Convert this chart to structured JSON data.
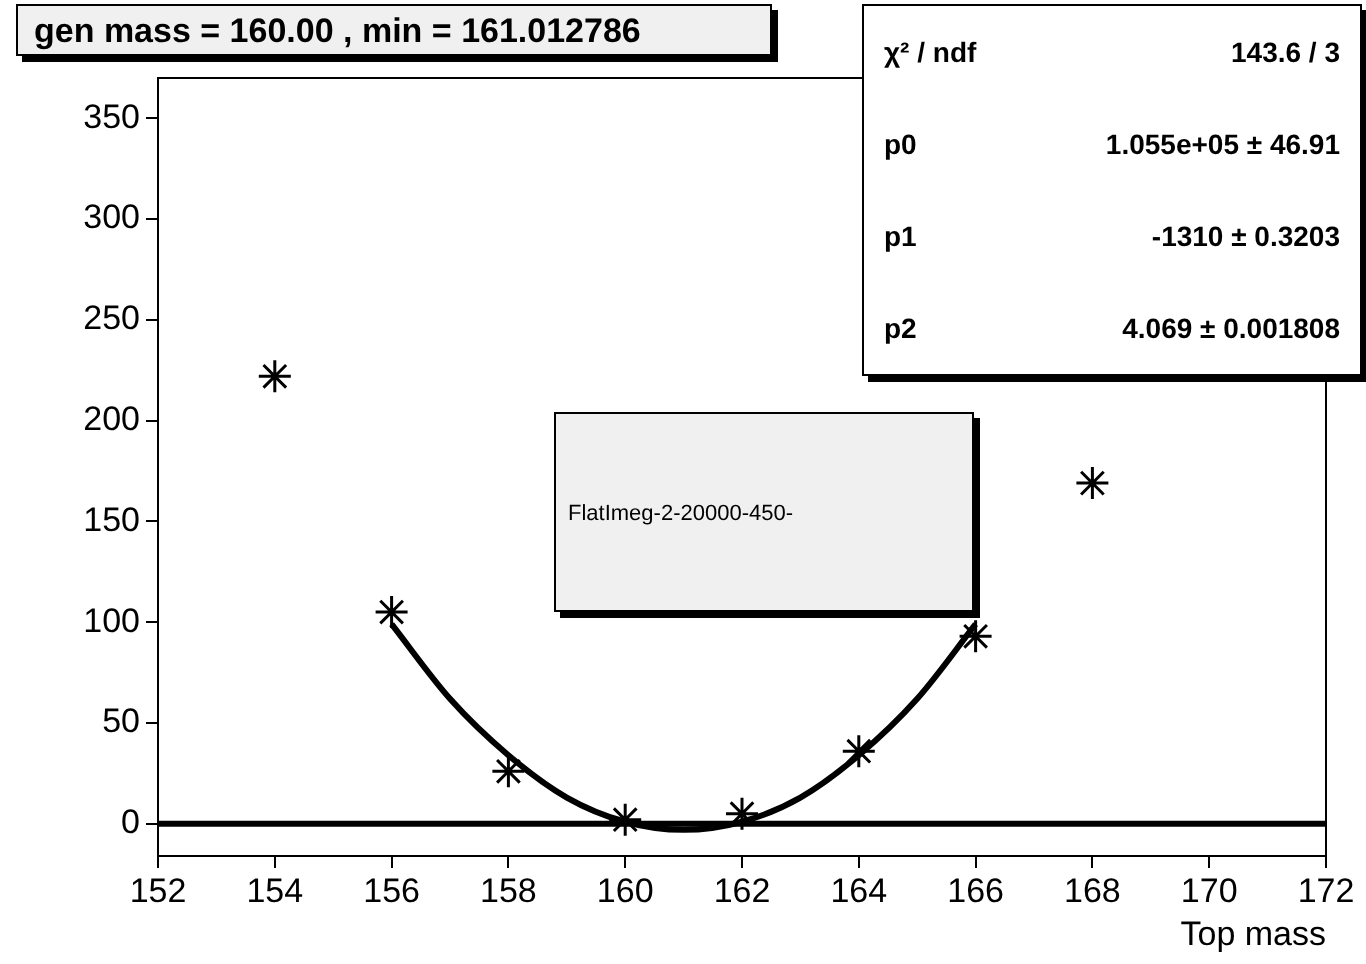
{
  "chart_data": {
    "type": "scatter",
    "title": "gen mass = 160.00 , min  = 161.012786",
    "xlabel": "Top mass",
    "annotations": [
      "FlatImeg-2-20000-450-",
      "χ² / ndf",
      "143.6 / 3",
      "p0",
      "1.055e+05 ± 46.91",
      "p1",
      "-1310 ± 0.3203",
      "p2",
      "4.069 ± 0.001808"
    ],
    "series": [
      {
        "color": "#000000",
        "x": [
          154,
          156,
          158,
          160,
          162,
          164,
          166,
          168
        ],
        "values": [
          222,
          105,
          26,
          2,
          5,
          36,
          93,
          169
        ]
      },
      {
        "type": "line",
        "color": "#000000",
        "marker": "none",
        "x": [
          156,
          157,
          158,
          159,
          160,
          161,
          162,
          163,
          164,
          165,
          166
        ],
        "values": [
          99,
          62,
          34,
          13,
          1,
          -3,
          1,
          13,
          34,
          62,
          99
        ]
      }
    ],
    "marker": "cross",
    "xlim": [
      152,
      172
    ],
    "xticks": [
      152,
      154,
      156,
      158,
      160,
      162,
      164,
      166,
      168,
      170,
      172
    ],
    "ylim": [
      -16,
      370
    ],
    "yticks": [
      0,
      50,
      100,
      150,
      200,
      250,
      300,
      350
    ],
    "grid": false,
    "legend": false,
    "ref_lines": [
      {
        "axis": "y",
        "value": 0,
        "color": "#000000"
      }
    ]
  }
}
